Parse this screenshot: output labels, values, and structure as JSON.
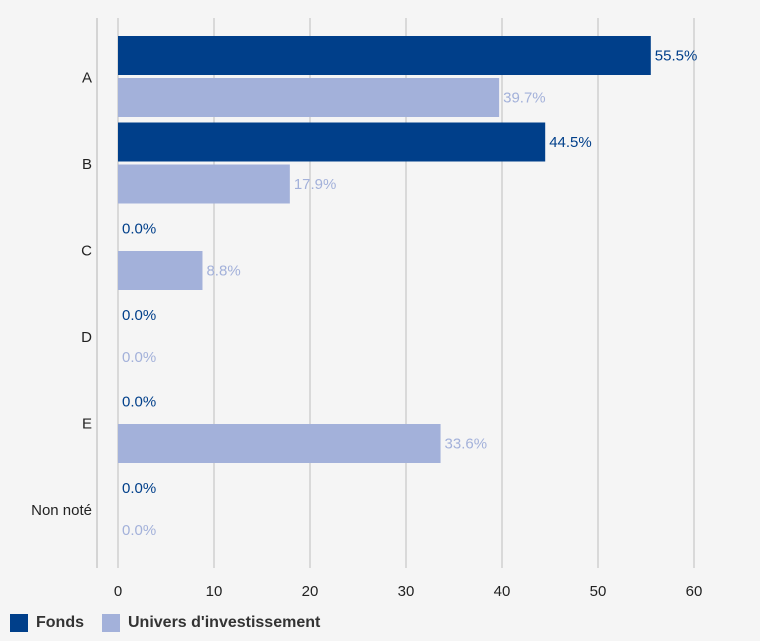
{
  "chart_data": {
    "type": "bar",
    "orientation": "horizontal",
    "categories": [
      "A",
      "B",
      "C",
      "D",
      "E",
      "Non noté"
    ],
    "series": [
      {
        "name": "Fonds",
        "color": "#003f8a",
        "values": [
          55.5,
          44.5,
          0.0,
          0.0,
          0.0,
          0.0
        ],
        "labels": [
          "55.5%",
          "44.5%",
          "0.0%",
          "0.0%",
          "0.0%",
          "0.0%"
        ]
      },
      {
        "name": "Univers d'investissement",
        "color": "#a3b1da",
        "values": [
          39.7,
          17.9,
          8.8,
          0.0,
          33.6,
          0.0
        ],
        "labels": [
          "39.7%",
          "17.9%",
          "8.8%",
          "0.0%",
          "33.6%",
          "0.0%"
        ]
      }
    ],
    "xticks": [
      "0",
      "10",
      "20",
      "30",
      "40",
      "50",
      "60"
    ],
    "xlim": [
      0,
      65
    ],
    "grid": true,
    "legend_position": "bottom-left"
  }
}
